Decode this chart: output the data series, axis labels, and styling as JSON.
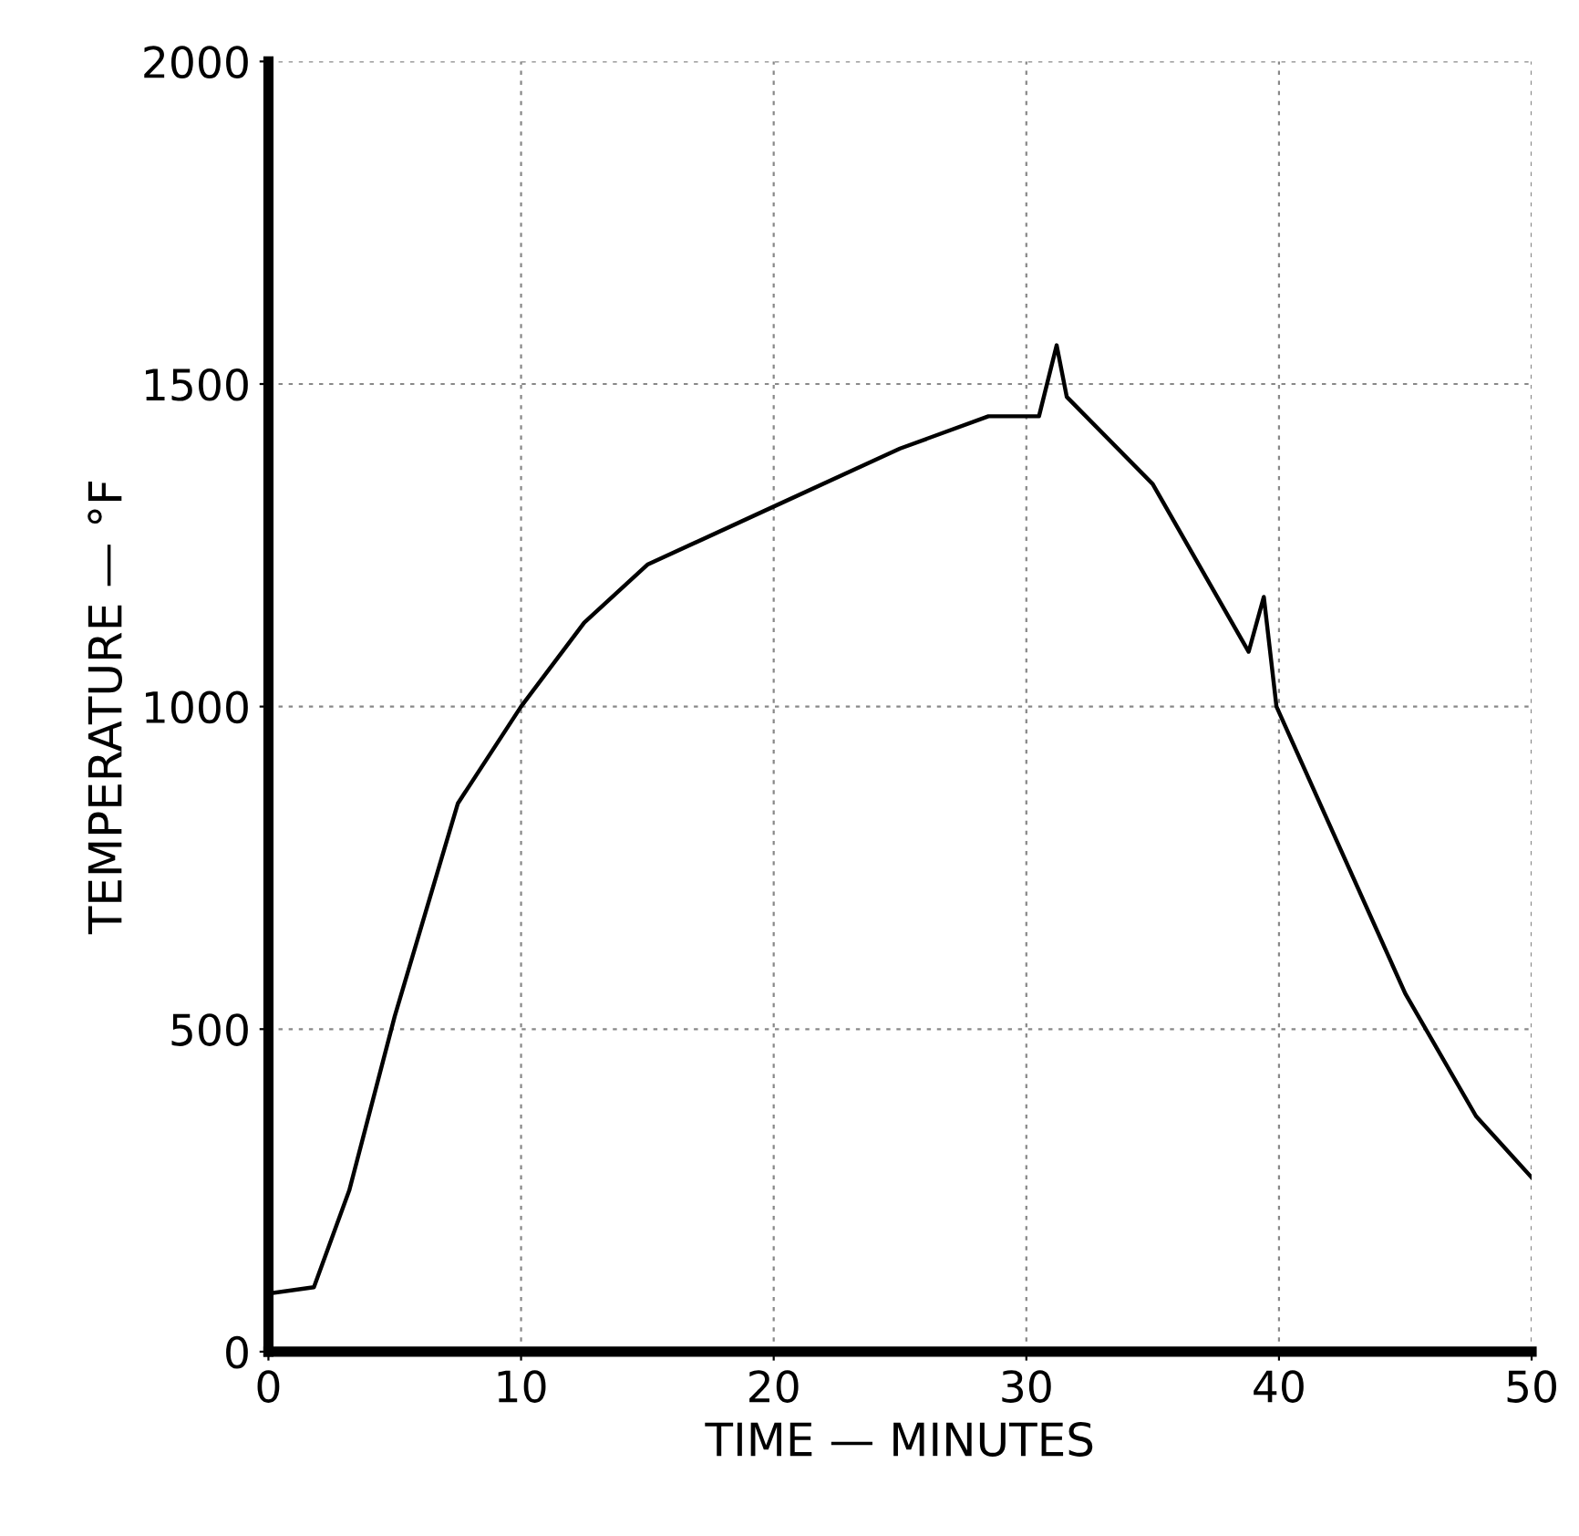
{
  "chart_data": {
    "type": "line",
    "xlabel": "TIME — MINUTES",
    "ylabel": "TEMPERATURE — °F",
    "x": [
      0,
      1.8,
      3.2,
      5,
      7.5,
      10,
      12.5,
      15,
      20,
      25,
      28.5,
      30.5,
      31.2,
      31.6,
      35,
      38.8,
      39.4,
      39.9,
      45,
      47.8,
      50
    ],
    "values": [
      90,
      100,
      250,
      520,
      850,
      1000,
      1130,
      1220,
      1310,
      1400,
      1450,
      1450,
      1560,
      1480,
      1345,
      1085,
      1170,
      1000,
      555,
      365,
      270
    ],
    "color": "#000000",
    "xlim": [
      0,
      50
    ],
    "ylim": [
      0,
      2000
    ],
    "xticks": [
      0,
      10,
      20,
      30,
      40,
      50
    ],
    "yticks": [
      0,
      500,
      1000,
      1500,
      2000
    ],
    "grid": true,
    "marker": "none",
    "line_style": "solid"
  }
}
